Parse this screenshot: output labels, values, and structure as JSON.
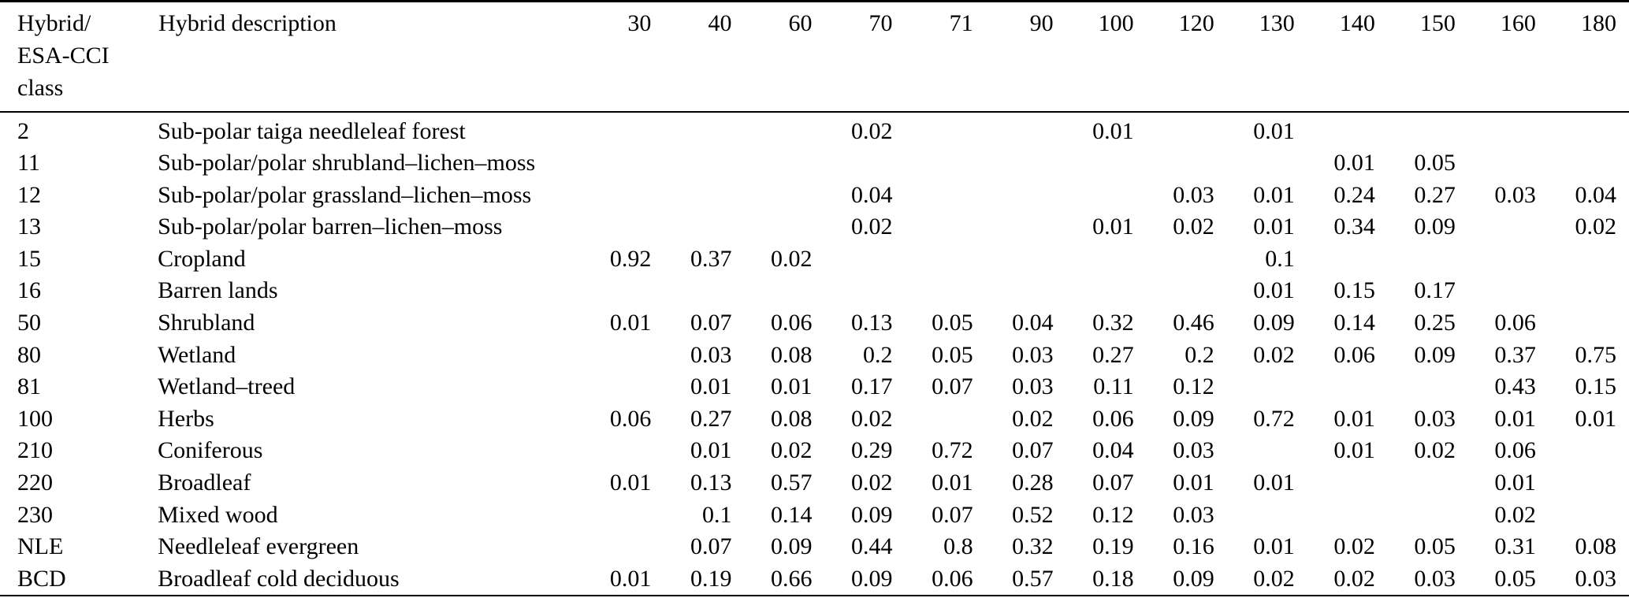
{
  "colors": {
    "background": "#ffffff",
    "text": "#000000",
    "rule": "#000000"
  },
  "table": {
    "header": {
      "class_col": "Hybrid/\nESA-CCI\nclass",
      "description_col": "Hybrid description",
      "value_cols": [
        "30",
        "40",
        "60",
        "70",
        "71",
        "90",
        "100",
        "120",
        "130",
        "140",
        "150",
        "160",
        "180"
      ]
    },
    "rows": [
      {
        "class": "2",
        "description": "Sub-polar taiga needleleaf forest",
        "values": [
          "",
          "",
          "",
          "0.02",
          "",
          "",
          "0.01",
          "",
          "0.01",
          "",
          "",
          "",
          ""
        ]
      },
      {
        "class": "11",
        "description": "Sub-polar/polar shrubland–lichen–moss",
        "values": [
          "",
          "",
          "",
          "",
          "",
          "",
          "",
          "",
          "",
          "0.01",
          "0.05",
          "",
          ""
        ]
      },
      {
        "class": "12",
        "description": "Sub-polar/polar grassland–lichen–moss",
        "values": [
          "",
          "",
          "",
          "0.04",
          "",
          "",
          "",
          "0.03",
          "0.01",
          "0.24",
          "0.27",
          "0.03",
          "0.04"
        ]
      },
      {
        "class": "13",
        "description": "Sub-polar/polar barren–lichen–moss",
        "values": [
          "",
          "",
          "",
          "0.02",
          "",
          "",
          "0.01",
          "0.02",
          "0.01",
          "0.34",
          "0.09",
          "",
          "0.02"
        ]
      },
      {
        "class": "15",
        "description": "Cropland",
        "values": [
          "0.92",
          "0.37",
          "0.02",
          "",
          "",
          "",
          "",
          "",
          "0.1",
          "",
          "",
          "",
          ""
        ]
      },
      {
        "class": "16",
        "description": "Barren lands",
        "values": [
          "",
          "",
          "",
          "",
          "",
          "",
          "",
          "",
          "0.01",
          "0.15",
          "0.17",
          "",
          ""
        ]
      },
      {
        "class": "50",
        "description": "Shrubland",
        "values": [
          "0.01",
          "0.07",
          "0.06",
          "0.13",
          "0.05",
          "0.04",
          "0.32",
          "0.46",
          "0.09",
          "0.14",
          "0.25",
          "0.06",
          ""
        ]
      },
      {
        "class": "80",
        "description": "Wetland",
        "values": [
          "",
          "0.03",
          "0.08",
          "0.2",
          "0.05",
          "0.03",
          "0.27",
          "0.2",
          "0.02",
          "0.06",
          "0.09",
          "0.37",
          "0.75"
        ]
      },
      {
        "class": "81",
        "description": "Wetland–treed",
        "values": [
          "",
          "0.01",
          "0.01",
          "0.17",
          "0.07",
          "0.03",
          "0.11",
          "0.12",
          "",
          "",
          "",
          "0.43",
          "0.15"
        ]
      },
      {
        "class": "100",
        "description": "Herbs",
        "values": [
          "0.06",
          "0.27",
          "0.08",
          "0.02",
          "",
          "0.02",
          "0.06",
          "0.09",
          "0.72",
          "0.01",
          "0.03",
          "0.01",
          "0.01"
        ]
      },
      {
        "class": "210",
        "description": "Coniferous",
        "values": [
          "",
          "0.01",
          "0.02",
          "0.29",
          "0.72",
          "0.07",
          "0.04",
          "0.03",
          "",
          "0.01",
          "0.02",
          "0.06",
          ""
        ]
      },
      {
        "class": "220",
        "description": "Broadleaf",
        "values": [
          "0.01",
          "0.13",
          "0.57",
          "0.02",
          "0.01",
          "0.28",
          "0.07",
          "0.01",
          "0.01",
          "",
          "",
          "0.01",
          ""
        ]
      },
      {
        "class": "230",
        "description": "Mixed wood",
        "values": [
          "",
          "0.1",
          "0.14",
          "0.09",
          "0.07",
          "0.52",
          "0.12",
          "0.03",
          "",
          "",
          "",
          "0.02",
          ""
        ]
      },
      {
        "class": "NLE",
        "description": "Needleleaf evergreen",
        "values": [
          "",
          "0.07",
          "0.09",
          "0.44",
          "0.8",
          "0.32",
          "0.19",
          "0.16",
          "0.01",
          "0.02",
          "0.05",
          "0.31",
          "0.08"
        ]
      },
      {
        "class": "BCD",
        "description": "Broadleaf cold deciduous",
        "values": [
          "0.01",
          "0.19",
          "0.66",
          "0.09",
          "0.06",
          "0.57",
          "0.18",
          "0.09",
          "0.02",
          "0.02",
          "0.03",
          "0.05",
          "0.03"
        ]
      }
    ]
  }
}
